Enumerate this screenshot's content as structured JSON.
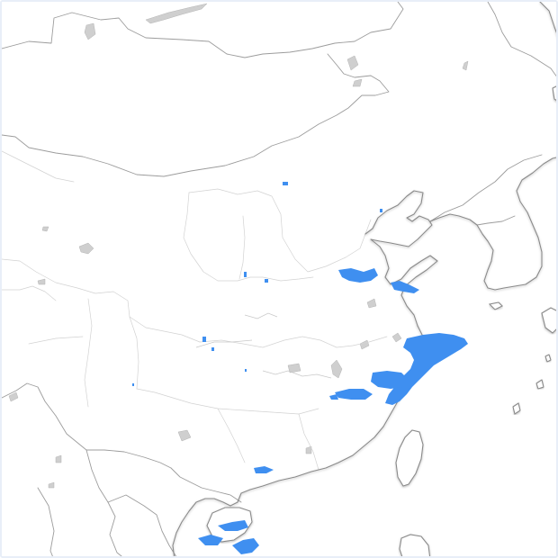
{
  "map": {
    "region": "east-asia",
    "background_color": "#ffffff",
    "border_color": "#9c9c9c",
    "coast_color": "#8a8a8a",
    "lake_color": "#cfcfcf",
    "precipitation_color": "#3f8ff0"
  }
}
